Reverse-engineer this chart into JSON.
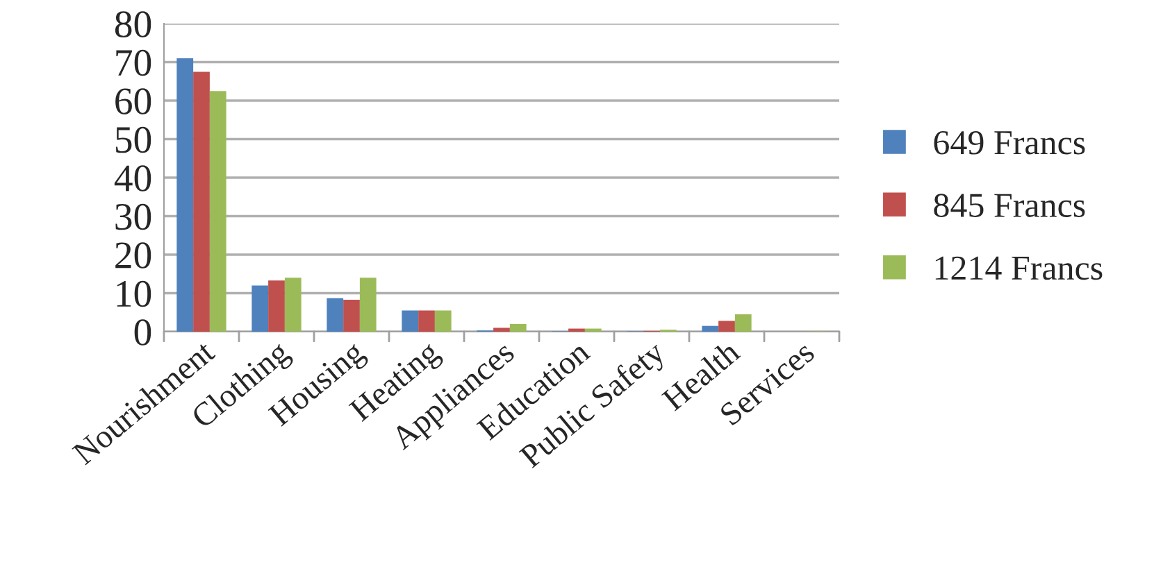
{
  "chart_data": {
    "type": "bar",
    "categories": [
      "Nourishment",
      "Clothing",
      "Housing",
      "Heating",
      "Appliances",
      "Education",
      "Public Safety",
      "Health",
      "Services"
    ],
    "series": [
      {
        "name": "649 Francs",
        "color": "#4f81bd",
        "values": [
          71,
          12,
          8.7,
          5.5,
          0.3,
          0.1,
          0.1,
          1.5,
          null
        ]
      },
      {
        "name": "845 Francs",
        "color": "#c0504d",
        "values": [
          67.5,
          13.3,
          8.3,
          5.5,
          1,
          0.8,
          0.2,
          2.8,
          null
        ]
      },
      {
        "name": "1214 Francs",
        "color": "#9bbb59",
        "values": [
          62.5,
          14,
          14,
          5.5,
          2,
          0.8,
          0.5,
          4.5,
          0.1
        ]
      }
    ],
    "ylim": [
      0,
      80
    ],
    "yticks": [
      0,
      10,
      20,
      30,
      40,
      50,
      60,
      70,
      80
    ],
    "grid": "y",
    "legend": "right"
  }
}
